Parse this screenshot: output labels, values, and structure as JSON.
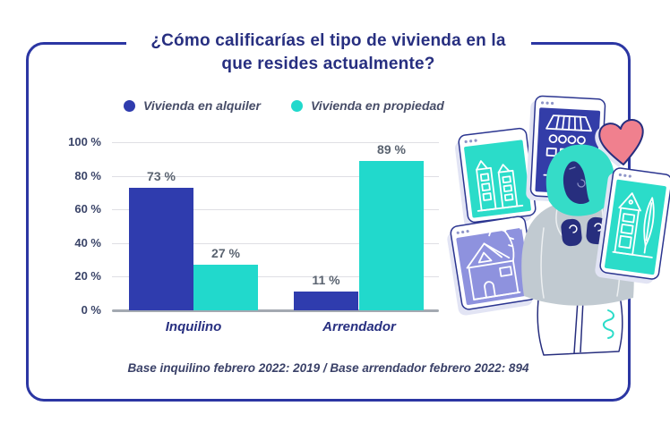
{
  "chart_data": {
    "type": "bar",
    "title": "¿Cómo calificarías el tipo de vivienda en la que resides actualmente?",
    "categories": [
      "Inquilino",
      "Arrendador"
    ],
    "series": [
      {
        "name": "Vivienda en alquiler",
        "color": "#2F3CAE",
        "values": [
          73,
          11
        ]
      },
      {
        "name": "Vivienda en propiedad",
        "color": "#21D9CC",
        "values": [
          27,
          89
        ]
      }
    ],
    "value_label_suffix": " %",
    "y_ticks": [
      "100 %",
      "80 %",
      "60 %",
      "40 %",
      "20 %",
      "0 %"
    ],
    "ylim": [
      0,
      100
    ],
    "grid": true,
    "legend_position": "top",
    "footnote": "Base inquilino febrero 2022: 2019 / Base arrendador febrero 2022: 894"
  },
  "colors": {
    "panel_border": "#2B36A3",
    "title_text": "#272F80",
    "bar_blue": "#2F3CAE",
    "bar_teal": "#21D9CC",
    "heart_pink": "#F0808E",
    "card_navy": "#333DA8",
    "card_lavender": "#8E92DE",
    "card_teal": "#2BDCC9",
    "person_gray": "#C1CAD1",
    "hair_teal": "#35DCC8"
  },
  "illustration": {
    "elements": [
      "browser-card-teal-left",
      "browser-card-navy",
      "heart",
      "browser-card-lavender",
      "person",
      "browser-card-teal-right"
    ]
  }
}
